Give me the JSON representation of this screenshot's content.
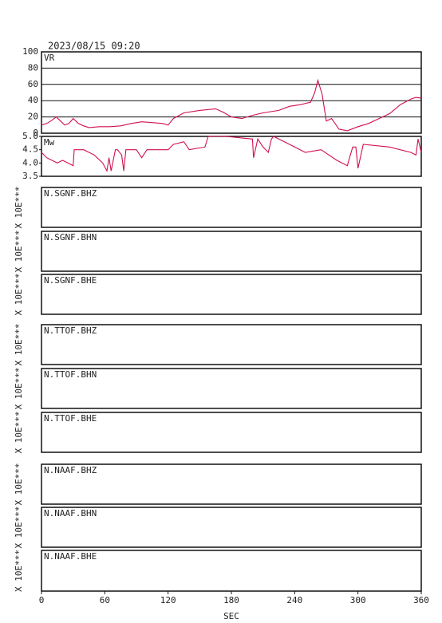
{
  "title": "2023/08/15 09:20",
  "chart_data": [
    {
      "type": "line",
      "title": "VR",
      "color": "#d0104c",
      "grid": true,
      "xlim": [
        0,
        360
      ],
      "ylim": [
        0,
        100
      ],
      "yticks": [
        0,
        20,
        40,
        60,
        80,
        100
      ],
      "x": [
        0,
        5,
        10,
        14,
        18,
        22,
        26,
        30,
        35,
        40,
        45,
        55,
        65,
        75,
        85,
        95,
        105,
        115,
        120,
        125,
        135,
        150,
        165,
        172,
        180,
        190,
        200,
        210,
        225,
        235,
        245,
        255,
        259,
        262,
        266,
        270,
        275,
        282,
        290,
        300,
        310,
        320,
        330,
        340,
        350,
        355,
        360
      ],
      "values": [
        10,
        12,
        16,
        20,
        15,
        10,
        12,
        18,
        12,
        9,
        7,
        8,
        8,
        9,
        12,
        14,
        13,
        12,
        10,
        18,
        25,
        28,
        30,
        26,
        20,
        18,
        22,
        25,
        28,
        33,
        35,
        38,
        50,
        65,
        48,
        15,
        18,
        5,
        3,
        8,
        12,
        18,
        24,
        35,
        42,
        44,
        43
      ]
    },
    {
      "type": "line",
      "title": "Mw",
      "color": "#d0104c",
      "grid": false,
      "xlim": [
        0,
        360
      ],
      "ylim": [
        3.5,
        5.0
      ],
      "yticks": [
        3.5,
        {
          "value": 4.0,
          "label": "4.0"
        },
        4.5,
        {
          "value": 5.0,
          "label": "5.0"
        }
      ],
      "x": [
        0,
        5,
        10,
        15,
        20,
        25,
        30,
        31,
        40,
        50,
        58,
        62,
        64,
        66,
        70,
        72,
        76,
        78,
        80,
        90,
        95,
        100,
        120,
        125,
        135,
        140,
        155,
        158,
        175,
        200,
        201,
        205,
        210,
        215,
        218,
        220,
        225,
        240,
        250,
        265,
        280,
        290,
        292,
        295,
        298,
        300,
        305,
        330,
        350,
        355,
        357,
        360
      ],
      "values": [
        4.4,
        4.2,
        4.1,
        4.0,
        4.1,
        4.0,
        3.9,
        4.5,
        4.5,
        4.3,
        4.0,
        3.7,
        4.2,
        3.7,
        4.5,
        4.5,
        4.3,
        3.7,
        4.5,
        4.5,
        4.2,
        4.5,
        4.5,
        4.7,
        4.8,
        4.5,
        4.6,
        5.0,
        5.0,
        4.9,
        4.2,
        4.9,
        4.6,
        4.4,
        4.9,
        5.0,
        4.9,
        4.6,
        4.4,
        4.5,
        4.1,
        3.9,
        4.2,
        4.6,
        4.6,
        3.8,
        4.7,
        4.6,
        4.4,
        4.3,
        4.9,
        4.4
      ]
    },
    {
      "type": "trace",
      "title": "N.SGNF.BHZ",
      "ylabel": "X 10E***"
    },
    {
      "type": "trace",
      "title": "N.SGNF.BHN",
      "ylabel": "X 10E***"
    },
    {
      "type": "trace",
      "title": "N.SGNF.BHE",
      "ylabel": "X 10E***"
    },
    {
      "type": "trace",
      "title": "N.TTOF.BHZ",
      "ylabel": "X 10E***"
    },
    {
      "type": "trace",
      "title": "N.TTOF.BHN",
      "ylabel": "X 10E***"
    },
    {
      "type": "trace",
      "title": "N.TTOF.BHE",
      "ylabel": "X 10E***"
    },
    {
      "type": "trace",
      "title": "N.NAAF.BHZ",
      "ylabel": "X 10E***"
    },
    {
      "type": "trace",
      "title": "N.NAAF.BHN",
      "ylabel": "X 10E***"
    },
    {
      "type": "trace",
      "title": "N.NAAF.BHE",
      "ylabel": "X 10E***",
      "xlabel": "SEC",
      "xlim": [
        0,
        360
      ],
      "xticks": [
        0,
        60,
        120,
        180,
        240,
        300,
        360
      ]
    }
  ]
}
